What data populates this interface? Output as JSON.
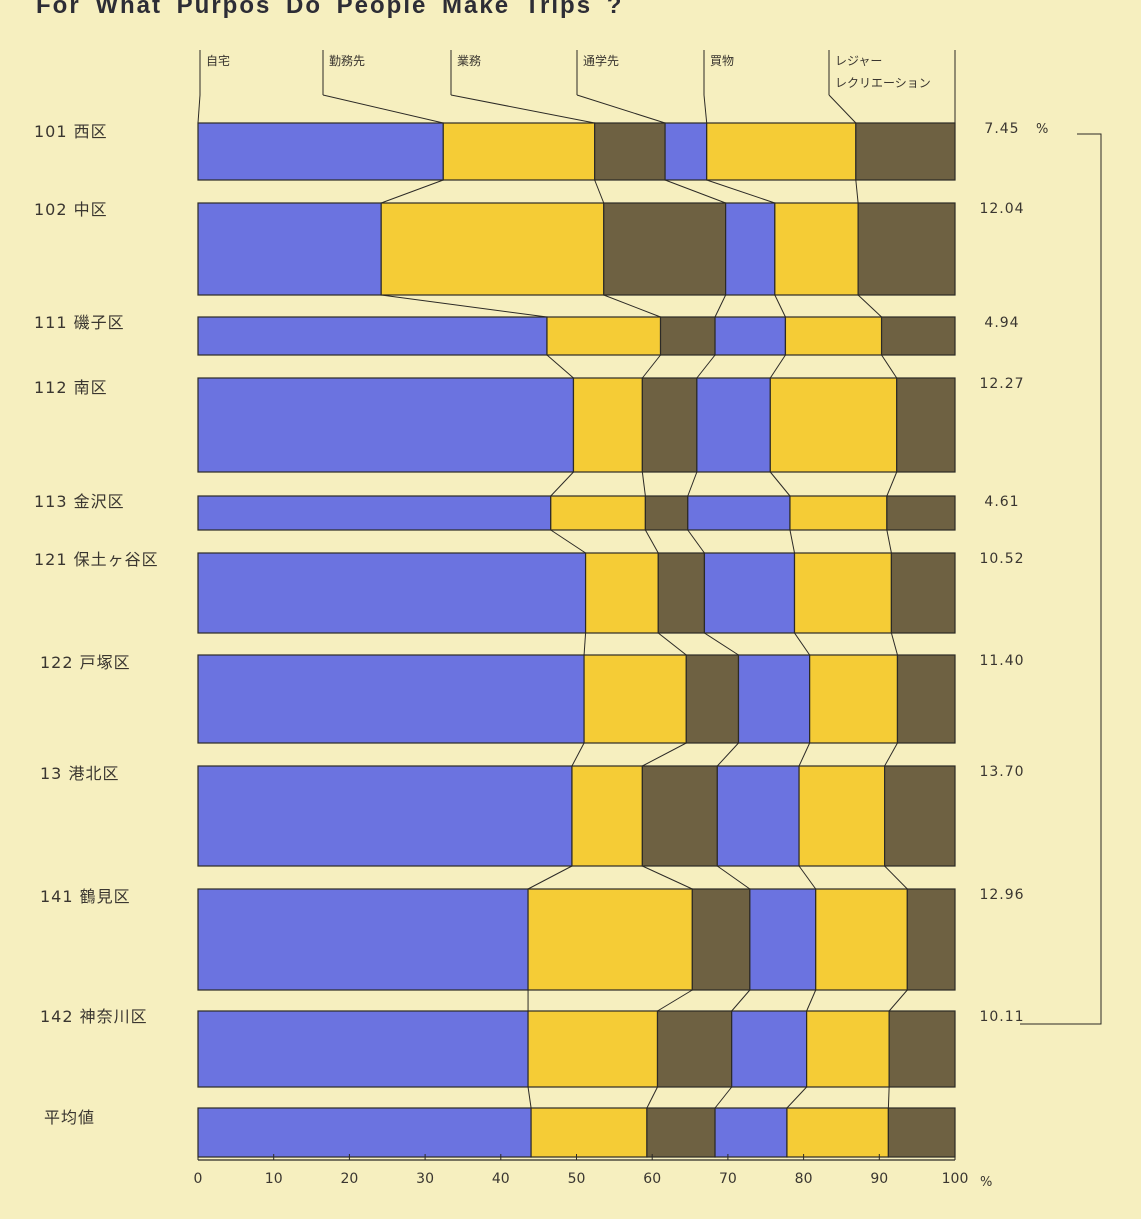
{
  "chart_data": {
    "type": "bar",
    "stacked": true,
    "orientation": "horizontal",
    "title": "For What Purpos Do People Make Trips ?",
    "segments": [
      "自宅",
      "勤務先",
      "業務",
      "通学先",
      "買物",
      "レジャー\nレクリエーション"
    ],
    "segment_colors": [
      "#6b73e0",
      "#f5cc36",
      "#6e6142",
      "#6b73e0",
      "#f5cc36",
      "#6e6142"
    ],
    "rows": [
      {
        "label": "101 西区",
        "value_label": "7.45",
        "unit": "%",
        "share": 7.45,
        "cum": [
          0,
          32.4,
          52.4,
          61.7,
          67.2,
          86.9,
          100
        ]
      },
      {
        "label": "102 中区",
        "value_label": "12.04",
        "unit": "",
        "share": 12.04,
        "cum": [
          0,
          24.2,
          53.6,
          69.7,
          76.2,
          87.2,
          100
        ]
      },
      {
        "label": "111 磯子区",
        "value_label": "4.94",
        "unit": "",
        "share": 4.94,
        "cum": [
          0,
          46.1,
          61.1,
          68.3,
          77.6,
          90.3,
          100
        ]
      },
      {
        "label": "112 南区",
        "value_label": "12.27",
        "unit": "",
        "share": 12.27,
        "cum": [
          0,
          49.6,
          58.7,
          65.9,
          75.6,
          92.3,
          100
        ]
      },
      {
        "label": "113 金沢区",
        "value_label": "4.61",
        "unit": "",
        "share": 4.61,
        "cum": [
          0,
          46.6,
          59.1,
          64.7,
          78.2,
          91.0,
          100
        ]
      },
      {
        "label": "121 保土ヶ谷区",
        "value_label": "10.52",
        "unit": "",
        "share": 10.52,
        "cum": [
          0,
          51.2,
          60.8,
          66.9,
          78.8,
          91.6,
          100
        ]
      },
      {
        "label": "122 戸塚区",
        "value_label": "11.40",
        "unit": "",
        "share": 11.4,
        "cum": [
          0,
          51.0,
          64.5,
          71.4,
          80.8,
          92.4,
          100
        ]
      },
      {
        "label": "13 港北区",
        "value_label": "13.70",
        "unit": "",
        "share": 13.7,
        "cum": [
          0,
          49.4,
          58.7,
          68.6,
          79.4,
          90.7,
          100
        ]
      },
      {
        "label": "141 鶴見区",
        "value_label": "12.96",
        "unit": "",
        "share": 12.96,
        "cum": [
          0,
          43.6,
          65.3,
          72.9,
          81.6,
          93.7,
          100
        ]
      },
      {
        "label": "142 神奈川区",
        "value_label": "10.11",
        "unit": "",
        "share": 10.11,
        "cum": [
          0,
          43.6,
          60.7,
          70.5,
          80.4,
          91.3,
          100
        ]
      },
      {
        "label": "平均値",
        "value_label": "",
        "unit": "",
        "share": null,
        "cum": [
          0,
          44.0,
          59.3,
          68.3,
          77.8,
          91.2,
          100
        ]
      }
    ],
    "x_ticks": [
      "0",
      "10",
      "20",
      "30",
      "40",
      "50",
      "60",
      "70",
      "80",
      "90",
      "100"
    ],
    "x_unit": "%",
    "xlim": [
      0,
      100
    ]
  }
}
